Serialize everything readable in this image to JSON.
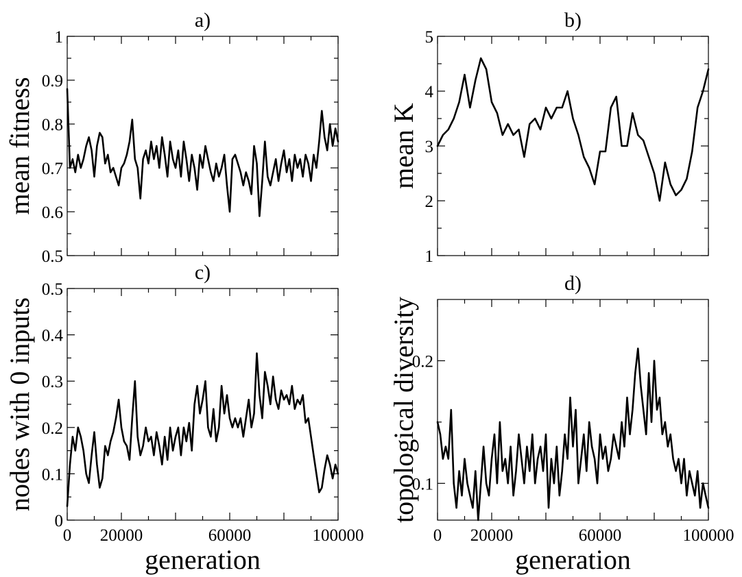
{
  "chart_data": [
    {
      "type": "line",
      "title": "a)",
      "xlabel": "",
      "ylabel": "mean fitness",
      "xlim": [
        0,
        100000
      ],
      "ylim": [
        0.5,
        1.0
      ],
      "yticks": [
        0.5,
        0.6,
        0.7,
        0.8,
        0.9,
        1.0
      ],
      "ytick_labels": [
        "0.5",
        "0.6",
        "0.7",
        "0.8",
        "0.9",
        "1"
      ],
      "xticks": [
        0,
        20000,
        40000,
        60000,
        80000,
        100000
      ],
      "xtick_labels": [],
      "x": [
        0,
        1000,
        2000,
        3000,
        4000,
        5000,
        6000,
        7000,
        8000,
        9000,
        10000,
        11000,
        12000,
        13000,
        14000,
        15000,
        16000,
        17000,
        18000,
        19000,
        20000,
        21000,
        22000,
        23000,
        24000,
        25000,
        26000,
        27000,
        28000,
        29000,
        30000,
        31000,
        32000,
        33000,
        34000,
        35000,
        36000,
        37000,
        38000,
        39000,
        40000,
        41000,
        42000,
        43000,
        44000,
        45000,
        46000,
        47000,
        48000,
        49000,
        50000,
        51000,
        52000,
        53000,
        54000,
        55000,
        56000,
        57000,
        58000,
        59000,
        60000,
        61000,
        62000,
        63000,
        64000,
        65000,
        66000,
        67000,
        68000,
        69000,
        70000,
        71000,
        72000,
        73000,
        74000,
        75000,
        76000,
        77000,
        78000,
        79000,
        80000,
        81000,
        82000,
        83000,
        84000,
        85000,
        86000,
        87000,
        88000,
        89000,
        90000,
        91000,
        92000,
        93000,
        94000,
        95000,
        96000,
        97000,
        98000,
        99000,
        100000
      ],
      "y": [
        0.88,
        0.7,
        0.72,
        0.69,
        0.73,
        0.7,
        0.72,
        0.75,
        0.77,
        0.74,
        0.68,
        0.75,
        0.78,
        0.77,
        0.71,
        0.73,
        0.69,
        0.7,
        0.68,
        0.66,
        0.7,
        0.71,
        0.73,
        0.76,
        0.81,
        0.72,
        0.7,
        0.63,
        0.72,
        0.74,
        0.71,
        0.76,
        0.72,
        0.75,
        0.7,
        0.77,
        0.73,
        0.68,
        0.76,
        0.72,
        0.7,
        0.74,
        0.68,
        0.76,
        0.72,
        0.67,
        0.73,
        0.7,
        0.65,
        0.73,
        0.7,
        0.75,
        0.72,
        0.69,
        0.67,
        0.71,
        0.68,
        0.7,
        0.73,
        0.66,
        0.6,
        0.72,
        0.73,
        0.71,
        0.69,
        0.66,
        0.69,
        0.67,
        0.64,
        0.75,
        0.71,
        0.59,
        0.67,
        0.76,
        0.68,
        0.66,
        0.69,
        0.72,
        0.67,
        0.71,
        0.74,
        0.69,
        0.72,
        0.67,
        0.73,
        0.7,
        0.72,
        0.68,
        0.73,
        0.71,
        0.67,
        0.73,
        0.7,
        0.76,
        0.83,
        0.77,
        0.74,
        0.8,
        0.75,
        0.79,
        0.76
      ]
    },
    {
      "type": "line",
      "title": "b)",
      "xlabel": "",
      "ylabel": "mean K",
      "xlim": [
        0,
        100000
      ],
      "ylim": [
        1,
        5
      ],
      "yticks": [
        1,
        2,
        3,
        4,
        5
      ],
      "ytick_labels": [
        "1",
        "2",
        "3",
        "4",
        "5"
      ],
      "xticks": [
        0,
        20000,
        40000,
        60000,
        80000,
        100000
      ],
      "xtick_labels": [],
      "x": [
        0,
        2000,
        4000,
        6000,
        8000,
        10000,
        12000,
        14000,
        16000,
        18000,
        20000,
        22000,
        24000,
        26000,
        28000,
        30000,
        32000,
        34000,
        36000,
        38000,
        40000,
        42000,
        44000,
        46000,
        48000,
        50000,
        52000,
        54000,
        56000,
        58000,
        60000,
        62000,
        64000,
        66000,
        68000,
        70000,
        72000,
        74000,
        76000,
        78000,
        80000,
        82000,
        84000,
        86000,
        88000,
        90000,
        92000,
        94000,
        96000,
        98000,
        100000
      ],
      "y": [
        3.0,
        3.2,
        3.3,
        3.5,
        3.8,
        4.3,
        3.7,
        4.2,
        4.6,
        4.4,
        3.8,
        3.6,
        3.2,
        3.4,
        3.2,
        3.3,
        2.8,
        3.4,
        3.5,
        3.3,
        3.7,
        3.5,
        3.7,
        3.7,
        4.0,
        3.5,
        3.2,
        2.8,
        2.6,
        2.3,
        2.9,
        2.9,
        3.7,
        3.9,
        3.0,
        3.0,
        3.6,
        3.2,
        3.1,
        2.8,
        2.5,
        2.0,
        2.7,
        2.3,
        2.1,
        2.2,
        2.4,
        2.9,
        3.7,
        4.0,
        4.4
      ]
    },
    {
      "type": "line",
      "title": "c)",
      "xlabel": "generation",
      "ylabel": "nodes with 0 inputs",
      "xlim": [
        0,
        100000
      ],
      "ylim": [
        0,
        0.5
      ],
      "yticks": [
        0,
        0.1,
        0.2,
        0.3,
        0.4,
        0.5
      ],
      "ytick_labels": [
        "0",
        "0.1",
        "0.2",
        "0.3",
        "0.4",
        "0.5"
      ],
      "xticks": [
        0,
        20000,
        40000,
        60000,
        80000,
        100000
      ],
      "xtick_labels": [
        "0",
        "20000",
        "",
        "60000",
        "",
        "100000"
      ],
      "x": [
        0,
        1000,
        2000,
        3000,
        4000,
        5000,
        6000,
        7000,
        8000,
        9000,
        10000,
        11000,
        12000,
        13000,
        14000,
        15000,
        16000,
        17000,
        18000,
        19000,
        20000,
        21000,
        22000,
        23000,
        24000,
        25000,
        26000,
        27000,
        28000,
        29000,
        30000,
        31000,
        32000,
        33000,
        34000,
        35000,
        36000,
        37000,
        38000,
        39000,
        40000,
        41000,
        42000,
        43000,
        44000,
        45000,
        46000,
        47000,
        48000,
        49000,
        50000,
        51000,
        52000,
        53000,
        54000,
        55000,
        56000,
        57000,
        58000,
        59000,
        60000,
        61000,
        62000,
        63000,
        64000,
        65000,
        66000,
        67000,
        68000,
        69000,
        70000,
        71000,
        72000,
        73000,
        74000,
        75000,
        76000,
        77000,
        78000,
        79000,
        80000,
        81000,
        82000,
        83000,
        84000,
        85000,
        86000,
        87000,
        88000,
        89000,
        90000,
        91000,
        92000,
        93000,
        94000,
        95000,
        96000,
        97000,
        98000,
        99000,
        100000
      ],
      "y": [
        0.03,
        0.12,
        0.18,
        0.15,
        0.2,
        0.18,
        0.15,
        0.1,
        0.08,
        0.14,
        0.19,
        0.12,
        0.07,
        0.09,
        0.16,
        0.14,
        0.17,
        0.19,
        0.22,
        0.26,
        0.2,
        0.17,
        0.16,
        0.13,
        0.22,
        0.3,
        0.18,
        0.14,
        0.16,
        0.2,
        0.17,
        0.18,
        0.14,
        0.19,
        0.16,
        0.12,
        0.18,
        0.13,
        0.2,
        0.15,
        0.18,
        0.2,
        0.14,
        0.2,
        0.17,
        0.21,
        0.15,
        0.25,
        0.29,
        0.23,
        0.26,
        0.3,
        0.2,
        0.18,
        0.24,
        0.17,
        0.2,
        0.29,
        0.23,
        0.27,
        0.22,
        0.2,
        0.22,
        0.2,
        0.22,
        0.18,
        0.22,
        0.26,
        0.2,
        0.23,
        0.36,
        0.27,
        0.22,
        0.32,
        0.29,
        0.25,
        0.31,
        0.26,
        0.24,
        0.28,
        0.26,
        0.27,
        0.25,
        0.29,
        0.24,
        0.26,
        0.25,
        0.27,
        0.21,
        0.22,
        0.18,
        0.14,
        0.1,
        0.06,
        0.07,
        0.11,
        0.14,
        0.12,
        0.09,
        0.12,
        0.1
      ]
    },
    {
      "type": "line",
      "title": "d)",
      "xlabel": "generation",
      "ylabel": "topological diversity",
      "xlim": [
        0,
        100000
      ],
      "ylim": [
        0.07,
        0.25
      ],
      "yticks": [
        0.1,
        0.2
      ],
      "ytick_labels": [
        "0.1",
        "0.2"
      ],
      "xticks": [
        0,
        20000,
        40000,
        60000,
        80000,
        100000
      ],
      "xtick_labels": [
        "0",
        "20000",
        "",
        "60000",
        "",
        "100000"
      ],
      "x": [
        0,
        1000,
        2000,
        3000,
        4000,
        5000,
        6000,
        7000,
        8000,
        9000,
        10000,
        11000,
        12000,
        13000,
        14000,
        15000,
        16000,
        17000,
        18000,
        19000,
        20000,
        21000,
        22000,
        23000,
        24000,
        25000,
        26000,
        27000,
        28000,
        29000,
        30000,
        31000,
        32000,
        33000,
        34000,
        35000,
        36000,
        37000,
        38000,
        39000,
        40000,
        41000,
        42000,
        43000,
        44000,
        45000,
        46000,
        47000,
        48000,
        49000,
        50000,
        51000,
        52000,
        53000,
        54000,
        55000,
        56000,
        57000,
        58000,
        59000,
        60000,
        61000,
        62000,
        63000,
        64000,
        65000,
        66000,
        67000,
        68000,
        69000,
        70000,
        71000,
        72000,
        73000,
        74000,
        75000,
        76000,
        77000,
        78000,
        79000,
        80000,
        81000,
        82000,
        83000,
        84000,
        85000,
        86000,
        87000,
        88000,
        89000,
        90000,
        91000,
        92000,
        93000,
        94000,
        95000,
        96000,
        97000,
        98000,
        99000,
        100000
      ],
      "y": [
        0.15,
        0.14,
        0.12,
        0.13,
        0.12,
        0.16,
        0.1,
        0.08,
        0.11,
        0.09,
        0.12,
        0.1,
        0.09,
        0.08,
        0.11,
        0.07,
        0.1,
        0.13,
        0.1,
        0.09,
        0.12,
        0.14,
        0.1,
        0.15,
        0.11,
        0.12,
        0.1,
        0.13,
        0.09,
        0.11,
        0.14,
        0.12,
        0.1,
        0.13,
        0.11,
        0.14,
        0.1,
        0.12,
        0.13,
        0.11,
        0.14,
        0.08,
        0.12,
        0.1,
        0.13,
        0.09,
        0.11,
        0.14,
        0.12,
        0.17,
        0.13,
        0.16,
        0.1,
        0.12,
        0.14,
        0.11,
        0.15,
        0.13,
        0.12,
        0.1,
        0.14,
        0.12,
        0.13,
        0.11,
        0.12,
        0.14,
        0.13,
        0.12,
        0.15,
        0.13,
        0.17,
        0.14,
        0.16,
        0.19,
        0.21,
        0.18,
        0.16,
        0.14,
        0.19,
        0.15,
        0.2,
        0.16,
        0.17,
        0.14,
        0.15,
        0.13,
        0.14,
        0.12,
        0.11,
        0.12,
        0.1,
        0.12,
        0.09,
        0.11,
        0.1,
        0.09,
        0.11,
        0.08,
        0.1,
        0.09,
        0.08
      ]
    }
  ]
}
